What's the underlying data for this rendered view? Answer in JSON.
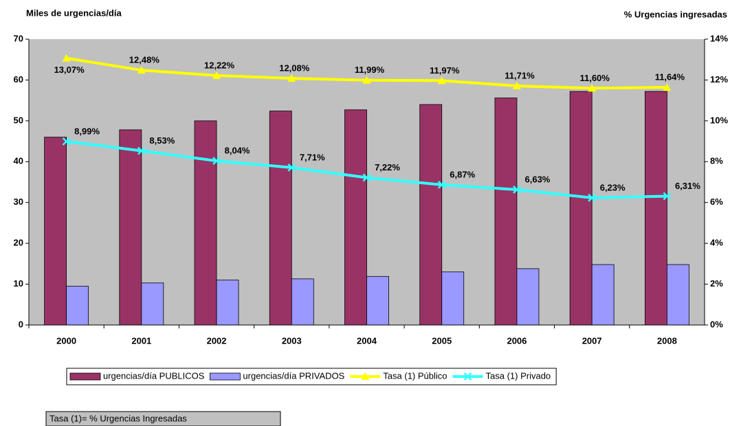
{
  "chart_data": {
    "type": "bar",
    "y_label": "Miles de urgencias/día",
    "y2_label": "% Urgencias ingresadas",
    "categories": [
      "2000",
      "2001",
      "2002",
      "2003",
      "2004",
      "2005",
      "2006",
      "2007",
      "2008"
    ],
    "series": [
      {
        "name": "urgencias/día PUBLICOS",
        "type": "bar",
        "color": "#993366",
        "values": [
          46,
          47.8,
          50,
          52.4,
          52.7,
          54,
          55.6,
          57.2,
          57.2
        ]
      },
      {
        "name": "urgencias/día PRIVADOS",
        "type": "bar",
        "color": "#9999ff",
        "values": [
          9.5,
          10.3,
          11,
          11.3,
          11.9,
          13,
          13.8,
          14.8,
          14.8
        ]
      },
      {
        "name": "Tasa (1) Público",
        "type": "line",
        "axis": "y2",
        "color": "#ffff00",
        "marker": "triangle",
        "values": [
          13.07,
          12.48,
          12.22,
          12.08,
          11.99,
          11.97,
          11.71,
          11.6,
          11.64
        ],
        "value_labels": [
          "13,07%",
          "12,48%",
          "12,22%",
          "12,08%",
          "11,99%",
          "11,97%",
          "11,71%",
          "11,60%",
          "11,64%"
        ]
      },
      {
        "name": "Tasa (1) Privado",
        "type": "line",
        "axis": "y2",
        "color": "#33ffff",
        "marker": "x",
        "values": [
          8.99,
          8.53,
          8.04,
          7.71,
          7.22,
          6.87,
          6.63,
          6.23,
          6.31
        ],
        "value_labels": [
          "8,99%",
          "8,53%",
          "8,04%",
          "7,71%",
          "7,22%",
          "6,87%",
          "6,63%",
          "6,23%",
          "6,31%"
        ]
      }
    ],
    "ylim": [
      0,
      70
    ],
    "yticks": [
      0,
      10,
      20,
      30,
      40,
      50,
      60,
      70
    ],
    "y2lim": [
      0,
      14
    ],
    "y2ticks": [
      {
        "value": 0,
        "label": "0%"
      },
      {
        "value": 2,
        "label": "2%"
      },
      {
        "value": 4,
        "label": "4%"
      },
      {
        "value": 6,
        "label": "6%"
      },
      {
        "value": 8,
        "label": "8%"
      },
      {
        "value": 10,
        "label": "10%"
      },
      {
        "value": 12,
        "label": "12%"
      },
      {
        "value": 14,
        "label": "14%"
      }
    ],
    "grid": false,
    "plot_background": "#c0c0c0",
    "legend": "bottom",
    "note": "Tasa (1)= % Urgencias Ingresadas"
  }
}
